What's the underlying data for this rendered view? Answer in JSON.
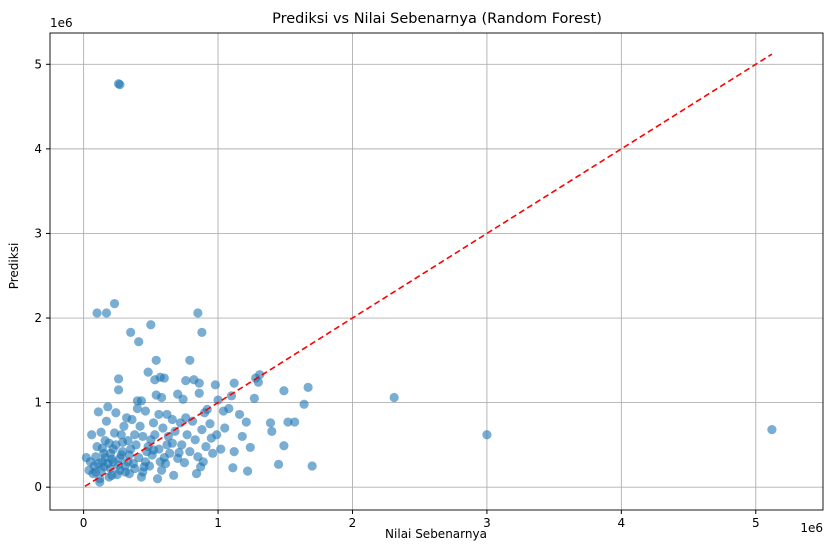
{
  "chart_data": {
    "type": "scatter",
    "title": "Prediksi vs Nilai Sebenarnya (Random Forest)",
    "xlabel": "Nilai Sebenarnya",
    "ylabel": "Prediksi",
    "x_offset_label": "1e6",
    "y_offset_label": "1e6",
    "xlim": [
      -0.25,
      5.5
    ],
    "ylim": [
      -0.27,
      5.37
    ],
    "xticks": [
      0,
      1,
      2,
      3,
      4,
      5
    ],
    "yticks": [
      0,
      1,
      2,
      3,
      4,
      5
    ],
    "grid": true,
    "point_color": "#1f77b4",
    "line_color": "#ff0000",
    "reference_line": {
      "style": "dashed",
      "from": [
        0.01,
        0.01
      ],
      "to": [
        5.12,
        5.12
      ]
    },
    "points": [
      [
        0.27,
        4.76
      ],
      [
        0.26,
        4.77
      ],
      [
        0.1,
        2.06
      ],
      [
        0.17,
        2.06
      ],
      [
        0.23,
        2.17
      ],
      [
        0.85,
        2.06
      ],
      [
        0.88,
        1.83
      ],
      [
        0.5,
        1.92
      ],
      [
        0.35,
        1.83
      ],
      [
        0.41,
        1.72
      ],
      [
        0.54,
        1.5
      ],
      [
        0.79,
        1.5
      ],
      [
        0.48,
        1.36
      ],
      [
        0.26,
        1.28
      ],
      [
        0.26,
        1.15
      ],
      [
        0.57,
        1.3
      ],
      [
        0.53,
        1.27
      ],
      [
        0.6,
        1.29
      ],
      [
        0.76,
        1.26
      ],
      [
        0.82,
        1.27
      ],
      [
        0.86,
        1.23
      ],
      [
        0.98,
        1.21
      ],
      [
        1.12,
        1.23
      ],
      [
        1.28,
        1.29
      ],
      [
        1.31,
        1.33
      ],
      [
        1.3,
        1.24
      ],
      [
        1.67,
        1.18
      ],
      [
        1.49,
        1.14
      ],
      [
        2.31,
        1.06
      ],
      [
        0.4,
        1.02
      ],
      [
        0.43,
        1.02
      ],
      [
        0.54,
        1.09
      ],
      [
        0.58,
        1.06
      ],
      [
        0.7,
        1.1
      ],
      [
        0.74,
        1.04
      ],
      [
        0.86,
        1.11
      ],
      [
        1.0,
        1.03
      ],
      [
        1.1,
        1.08
      ],
      [
        1.27,
        1.05
      ],
      [
        1.64,
        0.98
      ],
      [
        1.39,
        0.76
      ],
      [
        1.4,
        0.66
      ],
      [
        1.52,
        0.77
      ],
      [
        1.57,
        0.77
      ],
      [
        1.49,
        0.49
      ],
      [
        1.45,
        0.27
      ],
      [
        1.7,
        0.25
      ],
      [
        3.0,
        0.62
      ],
      [
        5.12,
        0.68
      ],
      [
        1.22,
        0.19
      ],
      [
        1.11,
        0.23
      ],
      [
        1.24,
        0.47
      ],
      [
        1.12,
        0.42
      ],
      [
        1.18,
        0.6
      ],
      [
        1.16,
        0.86
      ],
      [
        1.21,
        0.77
      ],
      [
        1.05,
        0.7
      ],
      [
        1.08,
        0.93
      ],
      [
        0.95,
        0.58
      ],
      [
        0.92,
        0.92
      ],
      [
        0.9,
        0.88
      ],
      [
        0.96,
        0.4
      ],
      [
        0.89,
        0.3
      ],
      [
        0.87,
        0.24
      ],
      [
        0.84,
        0.16
      ],
      [
        0.75,
        0.29
      ],
      [
        0.71,
        0.41
      ],
      [
        0.67,
        0.14
      ],
      [
        0.63,
        0.6
      ],
      [
        0.62,
        0.86
      ],
      [
        0.66,
        0.52
      ],
      [
        0.6,
        0.35
      ],
      [
        0.58,
        0.2
      ],
      [
        0.55,
        0.1
      ],
      [
        0.52,
        0.76
      ],
      [
        0.5,
        0.56
      ],
      [
        0.47,
        0.42
      ],
      [
        0.45,
        0.24
      ],
      [
        0.43,
        0.12
      ],
      [
        0.4,
        0.93
      ],
      [
        0.38,
        0.62
      ],
      [
        0.36,
        0.8
      ],
      [
        0.35,
        0.45
      ],
      [
        0.33,
        0.3
      ],
      [
        0.31,
        0.18
      ],
      [
        0.3,
        0.72
      ],
      [
        0.29,
        0.53
      ],
      [
        0.28,
        0.38
      ],
      [
        0.26,
        0.26
      ],
      [
        0.25,
        0.15
      ],
      [
        0.24,
        0.88
      ],
      [
        0.23,
        0.64
      ],
      [
        0.22,
        0.45
      ],
      [
        0.21,
        0.33
      ],
      [
        0.2,
        0.22
      ],
      [
        0.19,
        0.12
      ],
      [
        0.18,
        0.95
      ],
      [
        0.17,
        0.78
      ],
      [
        0.16,
        0.55
      ],
      [
        0.15,
        0.4
      ],
      [
        0.14,
        0.3
      ],
      [
        0.13,
        0.2
      ],
      [
        0.12,
        0.1
      ],
      [
        0.12,
        0.06
      ],
      [
        0.11,
        0.89
      ],
      [
        0.1,
        0.48
      ],
      [
        0.09,
        0.36
      ],
      [
        0.08,
        0.25
      ],
      [
        0.07,
        0.16
      ],
      [
        0.06,
        0.62
      ],
      [
        0.05,
        0.3
      ],
      [
        0.04,
        0.2
      ],
      [
        0.02,
        0.35
      ],
      [
        0.09,
        0.18
      ],
      [
        0.11,
        0.28
      ],
      [
        0.14,
        0.46
      ],
      [
        0.16,
        0.35
      ],
      [
        0.18,
        0.28
      ],
      [
        0.2,
        0.4
      ],
      [
        0.22,
        0.3
      ],
      [
        0.24,
        0.5
      ],
      [
        0.27,
        0.34
      ],
      [
        0.29,
        0.42
      ],
      [
        0.31,
        0.25
      ],
      [
        0.33,
        0.55
      ],
      [
        0.34,
        0.38
      ],
      [
        0.37,
        0.28
      ],
      [
        0.39,
        0.5
      ],
      [
        0.41,
        0.35
      ],
      [
        0.44,
        0.6
      ],
      [
        0.46,
        0.3
      ],
      [
        0.48,
        0.48
      ],
      [
        0.51,
        0.38
      ],
      [
        0.53,
        0.62
      ],
      [
        0.56,
        0.45
      ],
      [
        0.59,
        0.7
      ],
      [
        0.61,
        0.28
      ],
      [
        0.64,
        0.4
      ],
      [
        0.68,
        0.66
      ],
      [
        0.7,
        0.34
      ],
      [
        0.73,
        0.5
      ],
      [
        0.77,
        0.62
      ],
      [
        0.79,
        0.42
      ],
      [
        0.81,
        0.78
      ],
      [
        0.83,
        0.56
      ],
      [
        0.85,
        0.36
      ],
      [
        0.88,
        0.68
      ],
      [
        0.91,
        0.48
      ],
      [
        0.94,
        0.75
      ],
      [
        0.99,
        0.62
      ],
      [
        1.02,
        0.45
      ],
      [
        1.04,
        0.9
      ],
      [
        0.76,
        0.82
      ],
      [
        0.72,
        0.76
      ],
      [
        0.66,
        0.8
      ],
      [
        0.56,
        0.86
      ],
      [
        0.46,
        0.9
      ],
      [
        0.42,
        0.72
      ],
      [
        0.32,
        0.82
      ],
      [
        0.28,
        0.62
      ],
      [
        0.19,
        0.52
      ],
      [
        0.13,
        0.65
      ],
      [
        0.15,
        0.24
      ],
      [
        0.21,
        0.14
      ],
      [
        0.27,
        0.2
      ],
      [
        0.34,
        0.16
      ],
      [
        0.38,
        0.22
      ],
      [
        0.44,
        0.18
      ],
      [
        0.49,
        0.25
      ],
      [
        0.57,
        0.3
      ],
      [
        0.62,
        0.5
      ],
      [
        0.52,
        0.44
      ]
    ]
  }
}
